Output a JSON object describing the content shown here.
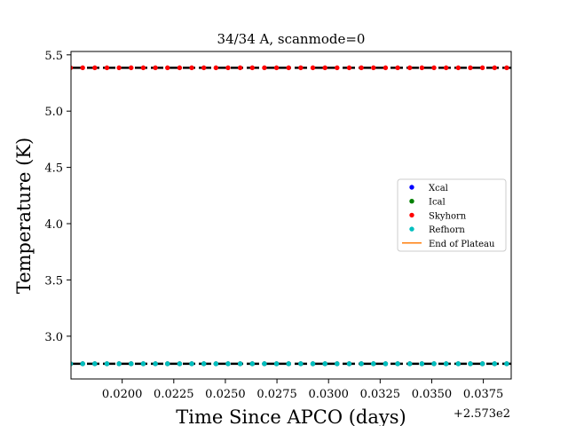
{
  "chart_data": {
    "type": "scatter",
    "title": "34/34 A, scanmode=0",
    "xlabel": "Time Since APCO (days)",
    "ylabel": "Temperature (K)",
    "x_offset_label": "+2.573e2",
    "xlim": [
      0.01752,
      0.03885
    ],
    "ylim": [
      2.62,
      5.53
    ],
    "x_ticks": [
      0.02,
      0.0225,
      0.025,
      0.0275,
      0.03,
      0.0325,
      0.035,
      0.0375
    ],
    "x_tick_labels": [
      "0.0200",
      "0.0225",
      "0.0250",
      "0.0275",
      "0.0300",
      "0.0325",
      "0.0350",
      "0.0375"
    ],
    "y_ticks": [
      3.0,
      3.5,
      4.0,
      4.5,
      5.0,
      5.5
    ],
    "y_tick_labels": [
      "3.0",
      "3.5",
      "4.0",
      "4.5",
      "5.0",
      "5.5"
    ],
    "grid": false,
    "legend_position": "center-right",
    "x_start": 0.0175,
    "x_step": 0.000587,
    "n_points": 37,
    "reference_lines": [
      {
        "y": 5.385,
        "color": "#000000",
        "style": "dashed"
      },
      {
        "y": 2.755,
        "color": "#000000",
        "style": "dashed"
      }
    ],
    "series": [
      {
        "name": "Xcal",
        "color": "#0000ff",
        "marker": "dot",
        "y": 2.755
      },
      {
        "name": "Ical",
        "color": "#008000",
        "marker": "dot",
        "y": 2.755
      },
      {
        "name": "Skyhorn",
        "color": "#ff0000",
        "marker": "dot",
        "y": 5.385
      },
      {
        "name": "Refhorn",
        "color": "#00bfbf",
        "marker": "dot",
        "y": 2.755
      },
      {
        "name": "End of Plateau",
        "color": "#ff7f0e",
        "marker": "line",
        "y": null
      }
    ]
  }
}
